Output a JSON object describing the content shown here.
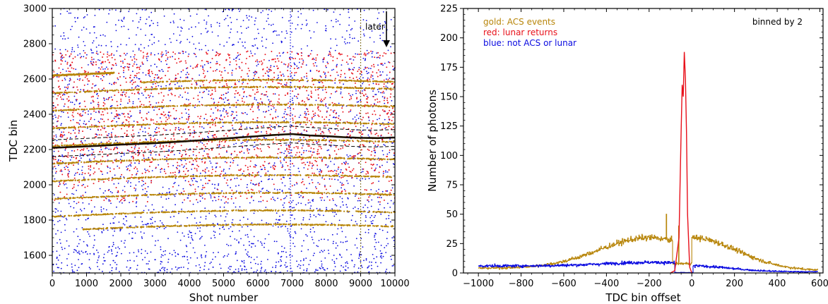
{
  "chart_data": [
    {
      "type": "scatter",
      "xlabel": "Shot number",
      "ylabel": "TDC bin",
      "xlim": [
        0,
        10000
      ],
      "ylim": [
        1500,
        3000
      ],
      "xticks": [
        0,
        1000,
        2000,
        3000,
        4000,
        5000,
        6000,
        7000,
        8000,
        9000,
        10000
      ],
      "yticks": [
        1600,
        1800,
        2000,
        2200,
        2400,
        2600,
        2800,
        3000
      ],
      "annotation": "later",
      "vertical_markers": [
        {
          "x": 6950,
          "style": "dotted",
          "color": "#1a1adb"
        },
        {
          "x": 9000,
          "style": "dotted",
          "color": "#6b5a00"
        }
      ],
      "window_bounds": {
        "offset_low": -50,
        "offset_high": 45,
        "style": "dashed"
      },
      "lunar_track": {
        "x": [
          0,
          1000,
          2000,
          3000,
          4000,
          5000,
          6000,
          6500,
          7000,
          7500,
          8000,
          8500,
          9000,
          9500,
          10000
        ],
        "y": [
          2210,
          2218,
          2228,
          2236,
          2248,
          2262,
          2276,
          2283,
          2288,
          2280,
          2276,
          2270,
          2266,
          2265,
          2268
        ]
      },
      "series": [
        {
          "name": "ACS events",
          "color": "#b8860b",
          "bands": [
            1740,
            1820,
            1920,
            2020,
            2120,
            2220,
            2320,
            2420,
            2520,
            2620
          ],
          "drift_peak": 35,
          "density": "dense"
        },
        {
          "name": "lunar returns",
          "color": "#e8101a",
          "y_range": [
            1900,
            2760
          ],
          "density": "moderate"
        },
        {
          "name": "not ACS or lunar",
          "color": "#0a0ae0",
          "y_range": [
            1500,
            3000
          ],
          "density": "moderate"
        }
      ]
    },
    {
      "type": "line",
      "xlabel": "TDC bin offset",
      "ylabel": "Number of photons",
      "xlim": [
        -1070,
        615
      ],
      "ylim": [
        0,
        225
      ],
      "xticks": [
        -1000,
        -800,
        -600,
        -400,
        -200,
        0,
        200,
        400,
        600
      ],
      "xtick_labels": [
        "−1000",
        "−800",
        "−600",
        "−400",
        "−200",
        "0",
        "200",
        "400",
        "600"
      ],
      "yticks": [
        0,
        25,
        50,
        75,
        100,
        125,
        150,
        175,
        200,
        225
      ],
      "annotation": "binned by 2",
      "legend_position": "top-left",
      "legend": [
        {
          "text": "gold: ACS events",
          "color": "#b8860b"
        },
        {
          "text": "red: lunar returns",
          "color": "#e8101a"
        },
        {
          "text": "blue: not ACS or lunar",
          "color": "#0a0ae0"
        }
      ],
      "series": [
        {
          "name": "ACS events",
          "color": "#b8860b",
          "shape": "broad hump",
          "x_range": [
            -1000,
            590
          ],
          "peak_x": -200,
          "peak_y": 30,
          "max_spike": 50
        },
        {
          "name": "lunar returns",
          "color": "#e8101a",
          "shape": "narrow peak",
          "x": [
            -100,
            -80,
            -60,
            -50,
            -45,
            -40,
            -35,
            -30,
            -25,
            -20,
            -10,
            0
          ],
          "y": [
            0,
            2,
            30,
            120,
            160,
            150,
            188,
            165,
            120,
            50,
            5,
            0
          ]
        },
        {
          "name": "not ACS or lunar",
          "color": "#0a0ae0",
          "shape": "low noise",
          "x_range": [
            -1000,
            590
          ],
          "level": 6
        }
      ]
    }
  ]
}
